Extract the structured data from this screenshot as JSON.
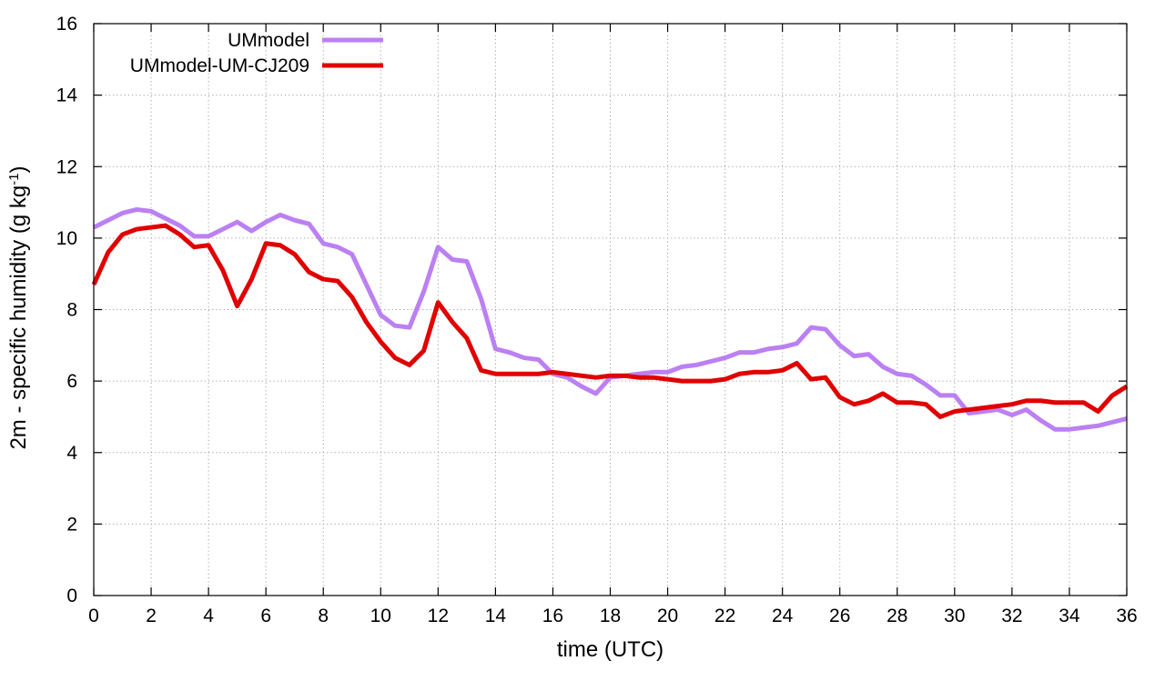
{
  "chart_data": {
    "type": "line",
    "title": "",
    "xlabel": "time (UTC)",
    "ylabel": {
      "prefix": "2m - specific humidity (g kg",
      "superscript": "-1",
      "suffix": ")"
    },
    "xlim": [
      0,
      36
    ],
    "ylim": [
      0,
      16
    ],
    "xticks": [
      0,
      2,
      4,
      6,
      8,
      10,
      12,
      14,
      16,
      18,
      20,
      22,
      24,
      26,
      28,
      30,
      32,
      34,
      36
    ],
    "yticks": [
      0,
      2,
      4,
      6,
      8,
      10,
      12,
      14,
      16
    ],
    "grid": true,
    "legend_position": "top-left",
    "series": [
      {
        "name": "UMmodel",
        "color": "#bb80f2",
        "x": [
          0,
          0.5,
          1,
          1.5,
          2,
          2.5,
          3,
          3.5,
          4,
          4.5,
          5,
          5.5,
          6,
          6.5,
          7,
          7.5,
          8,
          8.5,
          9,
          9.5,
          10,
          10.5,
          11,
          11.5,
          12,
          12.5,
          13,
          13.5,
          14,
          14.5,
          15,
          15.5,
          16,
          16.5,
          17,
          17.5,
          18,
          18.5,
          19,
          19.5,
          20,
          20.5,
          21,
          21.5,
          22,
          22.5,
          23,
          23.5,
          24,
          24.5,
          25,
          25.5,
          26,
          26.5,
          27,
          27.5,
          28,
          28.5,
          29,
          29.5,
          30,
          30.5,
          31,
          31.5,
          32,
          32.5,
          33,
          33.5,
          34,
          34.5,
          35,
          35.5,
          36
        ],
        "values": [
          10.3,
          10.5,
          10.7,
          10.8,
          10.75,
          10.55,
          10.35,
          10.05,
          10.05,
          10.25,
          10.45,
          10.2,
          10.45,
          10.65,
          10.5,
          10.4,
          9.85,
          9.75,
          9.55,
          8.7,
          7.85,
          7.55,
          7.5,
          8.5,
          9.75,
          9.4,
          9.35,
          8.3,
          6.9,
          6.8,
          6.65,
          6.6,
          6.2,
          6.1,
          5.85,
          5.65,
          6.1,
          6.15,
          6.2,
          6.25,
          6.25,
          6.4,
          6.45,
          6.55,
          6.65,
          6.8,
          6.8,
          6.9,
          6.95,
          7.05,
          7.5,
          7.45,
          7.0,
          6.7,
          6.75,
          6.4,
          6.2,
          6.15,
          5.9,
          5.6,
          5.6,
          5.1,
          5.15,
          5.2,
          5.05,
          5.2,
          4.9,
          4.65,
          4.65,
          4.7,
          4.75,
          4.85,
          4.95
        ]
      },
      {
        "name": "UMmodel-UM-CJ209",
        "color": "#e00000",
        "x": [
          0,
          0.5,
          1,
          1.5,
          2,
          2.5,
          3,
          3.5,
          4,
          4.5,
          5,
          5.5,
          6,
          6.5,
          7,
          7.5,
          8,
          8.5,
          9,
          9.5,
          10,
          10.5,
          11,
          11.5,
          12,
          12.5,
          13,
          13.5,
          14,
          14.5,
          15,
          15.5,
          16,
          16.5,
          17,
          17.5,
          18,
          18.5,
          19,
          19.5,
          20,
          20.5,
          21,
          21.5,
          22,
          22.5,
          23,
          23.5,
          24,
          24.5,
          25,
          25.5,
          26,
          26.5,
          27,
          27.5,
          28,
          28.5,
          29,
          29.5,
          30,
          30.5,
          31,
          31.5,
          32,
          32.5,
          33,
          33.5,
          34,
          34.5,
          35,
          35.5,
          36
        ],
        "values": [
          8.7,
          9.6,
          10.1,
          10.25,
          10.3,
          10.35,
          10.1,
          9.75,
          9.8,
          9.1,
          8.1,
          8.85,
          9.85,
          9.8,
          9.55,
          9.05,
          8.85,
          8.8,
          8.35,
          7.65,
          7.1,
          6.65,
          6.45,
          6.85,
          8.2,
          7.65,
          7.2,
          6.3,
          6.2,
          6.2,
          6.2,
          6.2,
          6.25,
          6.2,
          6.15,
          6.1,
          6.15,
          6.15,
          6.1,
          6.1,
          6.05,
          6.0,
          6.0,
          6.0,
          6.05,
          6.2,
          6.25,
          6.25,
          6.3,
          6.5,
          6.05,
          6.1,
          5.55,
          5.35,
          5.45,
          5.65,
          5.4,
          5.4,
          5.35,
          5.0,
          5.15,
          5.2,
          5.25,
          5.3,
          5.35,
          5.45,
          5.45,
          5.4,
          5.4,
          5.4,
          5.15,
          5.6,
          5.85
        ]
      }
    ]
  }
}
